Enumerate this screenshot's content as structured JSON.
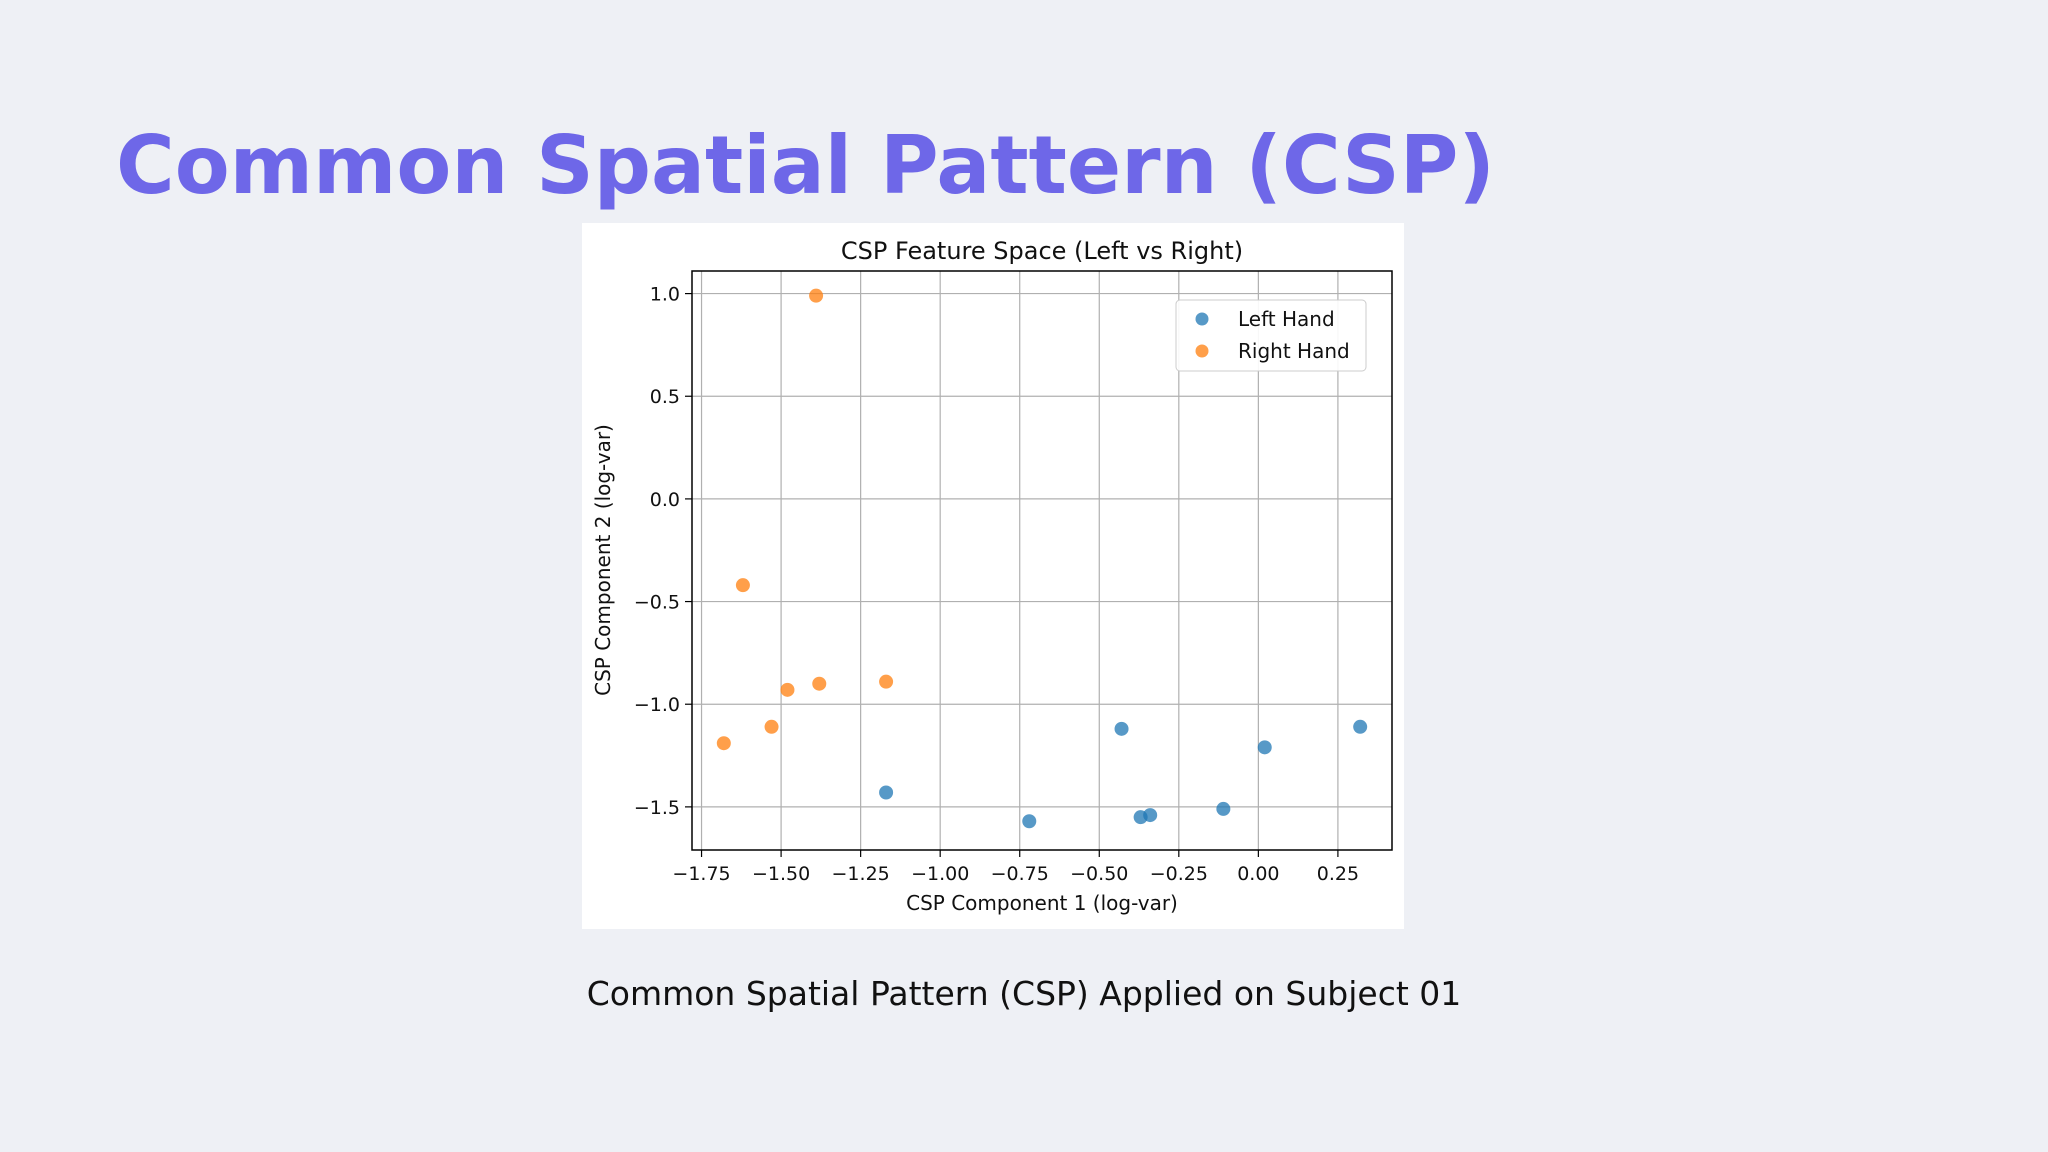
{
  "slide": {
    "title": "Common Spatial Pattern (CSP)",
    "caption": "Common Spatial Pattern (CSP) Applied on Subject 01",
    "title_color": "#6e67e8",
    "background_color": "#eef0f5"
  },
  "chart_data": {
    "type": "scatter",
    "title": "CSP Feature Space (Left vs Right)",
    "xlabel": "CSP Component 1 (log-var)",
    "ylabel": "CSP Component 2 (log-var)",
    "xlim": [
      -1.78,
      0.42
    ],
    "ylim": [
      -1.71,
      1.11
    ],
    "xticks": [
      {
        "value": -1.75,
        "label": "−1.75"
      },
      {
        "value": -1.5,
        "label": "−1.50"
      },
      {
        "value": -1.25,
        "label": "−1.25"
      },
      {
        "value": -1.0,
        "label": "−1.00"
      },
      {
        "value": -0.75,
        "label": "−0.75"
      },
      {
        "value": -0.5,
        "label": "−0.50"
      },
      {
        "value": -0.25,
        "label": "−0.25"
      },
      {
        "value": 0.0,
        "label": "0.00"
      },
      {
        "value": 0.25,
        "label": "0.25"
      }
    ],
    "yticks": [
      {
        "value": 1.0,
        "label": "1.0"
      },
      {
        "value": 0.5,
        "label": "0.5"
      },
      {
        "value": 0.0,
        "label": "0.0"
      },
      {
        "value": -0.5,
        "label": "−0.5"
      },
      {
        "value": -1.0,
        "label": "−1.0"
      },
      {
        "value": -1.5,
        "label": "−1.5"
      }
    ],
    "grid": true,
    "legend_position": "top-right",
    "series": [
      {
        "name": "Left Hand",
        "color": "#1f77b4",
        "points": [
          {
            "x": -1.17,
            "y": -1.43
          },
          {
            "x": -0.72,
            "y": -1.57
          },
          {
            "x": -0.43,
            "y": -1.12
          },
          {
            "x": -0.37,
            "y": -1.55
          },
          {
            "x": -0.34,
            "y": -1.54
          },
          {
            "x": -0.11,
            "y": -1.51
          },
          {
            "x": 0.02,
            "y": -1.21
          },
          {
            "x": 0.32,
            "y": -1.11
          }
        ]
      },
      {
        "name": "Right Hand",
        "color": "#ff7f0e",
        "points": [
          {
            "x": -1.39,
            "y": 0.99
          },
          {
            "x": -1.62,
            "y": -0.42
          },
          {
            "x": -1.48,
            "y": -0.93
          },
          {
            "x": -1.38,
            "y": -0.9
          },
          {
            "x": -1.17,
            "y": -0.89
          },
          {
            "x": -1.53,
            "y": -1.11
          },
          {
            "x": -1.68,
            "y": -1.19
          }
        ]
      }
    ]
  }
}
